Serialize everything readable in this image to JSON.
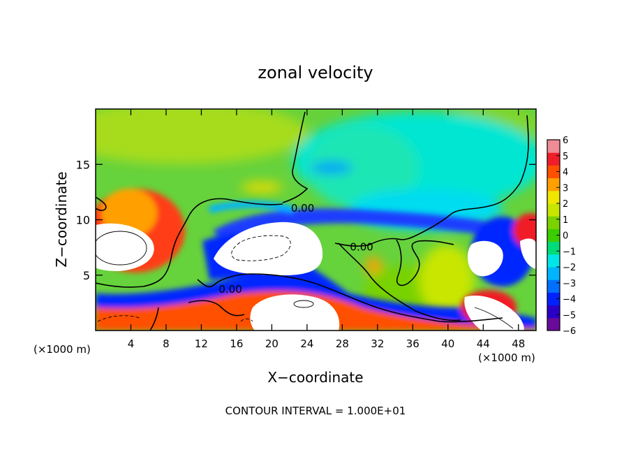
{
  "chart_data": {
    "type": "heatmap",
    "title": "zonal velocity",
    "xlabel": "X−coordinate",
    "ylabel": "Z−coordinate",
    "x_unit_label_left": "(×1000 m)",
    "x_unit_label_right": "(×1000 m)",
    "xlim": [
      0,
      50
    ],
    "ylim": [
      0,
      20
    ],
    "x_ticks": [
      4,
      8,
      12,
      16,
      20,
      24,
      28,
      32,
      36,
      40,
      44,
      48
    ],
    "x_tick_labels": [
      "4",
      "8",
      "12",
      "16",
      "20",
      "24",
      "28",
      "32",
      "36",
      "40",
      "44",
      "48"
    ],
    "y_ticks": [
      5,
      10,
      15
    ],
    "y_tick_labels": [
      "5",
      "10",
      "15"
    ],
    "contour_labels": [
      {
        "text": "0.00",
        "x": 23.5,
        "y": 11.1
      },
      {
        "text": "0.00",
        "x": 30.2,
        "y": 7.6
      },
      {
        "text": "0.00",
        "x": 15.3,
        "y": 3.8
      }
    ],
    "colorbar": {
      "min": -6,
      "max": 6,
      "tick_values": [
        6,
        5,
        4,
        3,
        2,
        1,
        0,
        -1,
        -2,
        -3,
        -4,
        -5,
        -6
      ],
      "tick_labels": [
        "6",
        "5",
        "4",
        "3",
        "2",
        "1",
        "0",
        "−1",
        "−2",
        "−3",
        "−4",
        "−5",
        "−6"
      ],
      "colors": [
        "#6a0a9a",
        "#2a00c8",
        "#0022ff",
        "#0070ff",
        "#00b4ff",
        "#00e6e6",
        "#00dc78",
        "#3ccd00",
        "#7ad200",
        "#c8e600",
        "#f0e600",
        "#ffa000",
        "#ff5000",
        "#f01e28",
        "#f08c96"
      ]
    },
    "footer": "CONTOUR INTERVAL = 1.000E+01"
  }
}
